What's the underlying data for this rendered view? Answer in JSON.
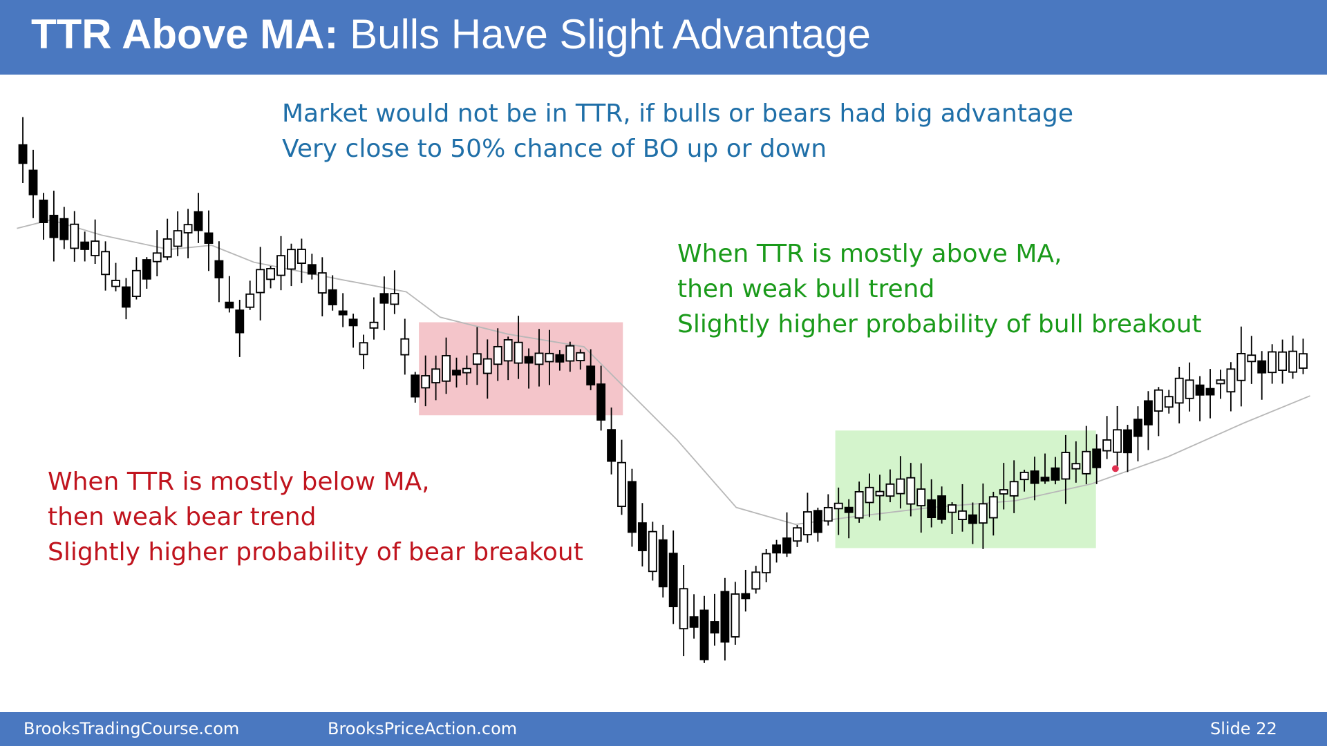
{
  "header": {
    "title_bold": "TTR Above MA:",
    "title_rest": "Bulls Have Slight Advantage"
  },
  "top_note": [
    "Market would not be in TTR, if bulls or bears had big advantage",
    "Very close to 50% chance of BO up or down"
  ],
  "bull_note": [
    "When TTR is mostly above MA,",
    "then weak bull trend",
    "Slightly higher probability of bull breakout"
  ],
  "bear_note": [
    "When TTR is mostly below MA,",
    "then weak bear trend",
    "Slightly higher probability of bear breakout"
  ],
  "footer": {
    "left": "BrooksTradingCourse.com",
    "center": "BrooksPriceAction.com",
    "slide": "Slide  22"
  }
}
